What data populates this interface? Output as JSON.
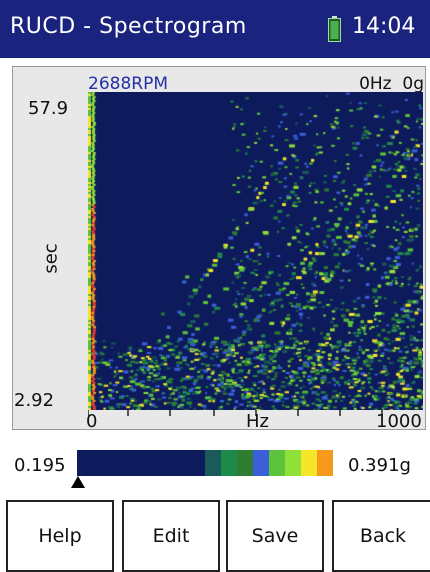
{
  "titlebar": {
    "title": "RUCD - Spectrogram",
    "time": "14:04",
    "battery_icon": "battery-icon",
    "background": "#1a237e"
  },
  "plot": {
    "rpm": "2688RPM",
    "cursor_readout": "0Hz  0g",
    "y_axis": {
      "label": "sec",
      "max": "57.9",
      "min": "2.92"
    },
    "x_axis": {
      "label": "Hz",
      "min": "0",
      "max": "1000"
    }
  },
  "scale": {
    "min": "0.195",
    "max": "0.391g",
    "colors": [
      "#0d1a5c",
      "#0d1a5c",
      "#0d1a5c",
      "#0d1a5c",
      "#0d1a5c",
      "#0d1a5c",
      "#0d1a5c",
      "#0d1a5c",
      "#1a5a5a",
      "#1e8a4a",
      "#2e7d32",
      "#3b5fd8",
      "#5cc43a",
      "#8fe038",
      "#f5e62a",
      "#f59a1c"
    ]
  },
  "softkeys": {
    "help": "Help",
    "edit": "Edit",
    "save": "Save",
    "back": "Back"
  }
}
